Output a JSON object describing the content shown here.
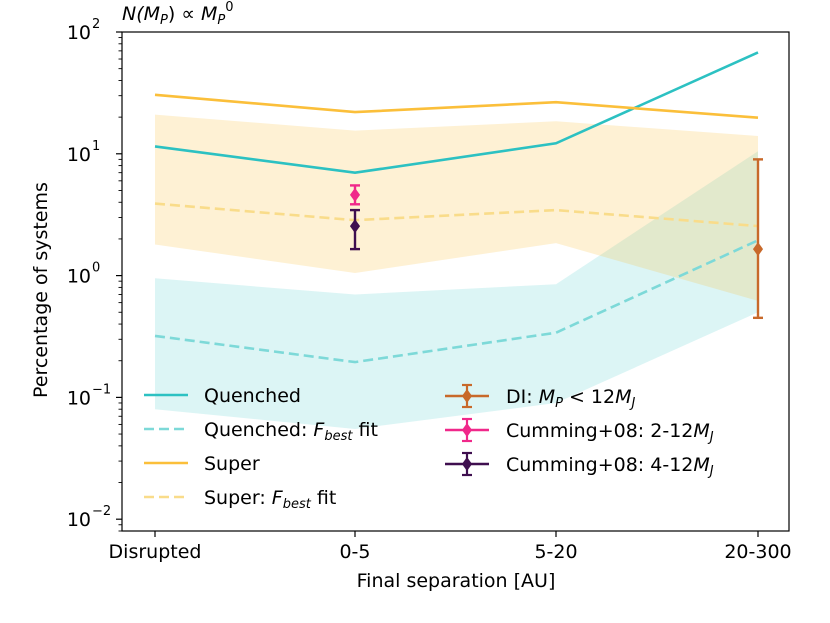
{
  "chart_data": {
    "type": "line",
    "title": "N(M_P) ∝ M_P^0",
    "title_parts": {
      "n": "N(",
      "mp1": "M",
      "sub1": "P",
      "mid": ") ∝ ",
      "mp2": "M",
      "sub2": "P",
      "exp": "0"
    },
    "xlabel": "Final separation [AU]",
    "ylabel": "Percentage of systems",
    "yscale": "log",
    "ylim": [
      0.008,
      100
    ],
    "categories": [
      "Disrupted",
      "0-5",
      "5-20",
      "20-300"
    ],
    "y_ticks": [
      {
        "value": 0.01,
        "base": "10",
        "exp": "−2"
      },
      {
        "value": 0.1,
        "base": "10",
        "exp": "−1"
      },
      {
        "value": 1,
        "base": "10",
        "exp": "0"
      },
      {
        "value": 10,
        "base": "10",
        "exp": "1"
      },
      {
        "value": 100,
        "base": "10",
        "exp": "2"
      }
    ],
    "bands": [
      {
        "name": "Quenched band",
        "color": "#3ec5c8",
        "opacity": 0.18,
        "lower": [
          0.08,
          0.055,
          0.09,
          0.5
        ],
        "upper": [
          0.95,
          0.7,
          0.85,
          10.5
        ]
      },
      {
        "name": "Super band",
        "color": "#fbbf3a",
        "opacity": 0.22,
        "lower": [
          1.8,
          1.05,
          1.85,
          0.62
        ],
        "upper": [
          21,
          15.5,
          18.5,
          14
        ]
      }
    ],
    "series": [
      {
        "name": "Quenched",
        "color": "#2cc1c2",
        "dash": "solid",
        "values": [
          11.5,
          7.0,
          12.2,
          68
        ]
      },
      {
        "name": "Quenched: F_best fit",
        "color": "#7dd9d8",
        "dash": "dashed",
        "values": [
          0.32,
          0.195,
          0.34,
          1.95
        ]
      },
      {
        "name": "Super",
        "color": "#fbbf3a",
        "dash": "solid",
        "values": [
          30.5,
          22.0,
          26.5,
          19.8
        ]
      },
      {
        "name": "Super: F_best fit",
        "color": "#f9dc8a",
        "dash": "dashed",
        "values": [
          3.9,
          2.85,
          3.45,
          2.55
        ]
      }
    ],
    "errorbars": [
      {
        "name": "DI: M_P < 12M_J",
        "color": "#c8692a",
        "x_index": 3,
        "y": 1.65,
        "ylow": 0.45,
        "yhigh": 9.0
      },
      {
        "name": "Cumming+08: 2-12M_J",
        "color": "#f0288a",
        "x_index": 1,
        "y": 4.6,
        "ylow": 3.85,
        "yhigh": 5.5
      },
      {
        "name": "Cumming+08: 4-12M_J",
        "color": "#3f0f4f",
        "x_index": 1,
        "y": 2.55,
        "ylow": 1.65,
        "yhigh": 3.45
      }
    ],
    "legend": {
      "placement": "lower-center",
      "entries": [
        {
          "key": "Quenched",
          "parts": [
            "Quenched"
          ]
        },
        {
          "key": "Quenched: F_best fit",
          "parts": [
            "Quenched: ",
            "F",
            "best",
            " fit"
          ]
        },
        {
          "key": "Super",
          "parts": [
            "Super"
          ]
        },
        {
          "key": "Super: F_best fit",
          "parts": [
            "Super: ",
            "F",
            "best",
            " fit"
          ]
        },
        {
          "key": "DI",
          "parts": [
            "DI: ",
            "M",
            "P",
            " < 12",
            "M",
            "J"
          ]
        },
        {
          "key": "Cumming 2-12",
          "parts": [
            "Cumming+08: 2-12",
            "M",
            "J"
          ]
        },
        {
          "key": "Cumming 4-12",
          "parts": [
            "Cumming+08: 4-12",
            "M",
            "J"
          ]
        }
      ]
    }
  }
}
